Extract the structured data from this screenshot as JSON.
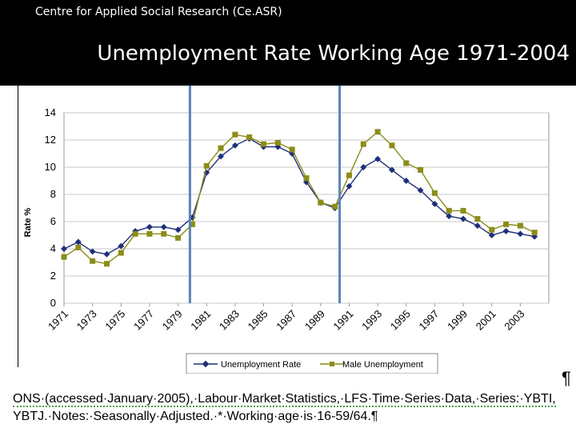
{
  "header": {
    "org": "Centre for Applied Social Research (Ce.ASR)",
    "title": "Unemployment Rate Working Age 1971-2004"
  },
  "chart_data": {
    "type": "line",
    "ylabel": "Rate %",
    "ylim": [
      0,
      14
    ],
    "yticks": [
      "0",
      "2",
      "4",
      "6",
      "8",
      "10",
      "12",
      "14"
    ],
    "xticks": [
      "1971",
      "1973",
      "1975",
      "1977",
      "1979",
      "1981",
      "1983",
      "1985",
      "1987",
      "1989",
      "1991",
      "1993",
      "1995",
      "1997",
      "1999",
      "2001",
      "2003"
    ],
    "x": [
      1971,
      1972,
      1973,
      1974,
      1975,
      1976,
      1977,
      1978,
      1979,
      1980,
      1981,
      1982,
      1983,
      1984,
      1985,
      1986,
      1987,
      1988,
      1989,
      1990,
      1991,
      1992,
      1993,
      1994,
      1995,
      1996,
      1997,
      1998,
      1999,
      2000,
      2001,
      2002,
      2003,
      2004
    ],
    "grid": true,
    "vertical_markers": [
      1980,
      1990.5
    ],
    "legend_position": "bottom",
    "series": [
      {
        "name": "Unemployment Rate",
        "color": "#1f2f7a",
        "marker": "diamond",
        "values": [
          4.0,
          4.5,
          3.8,
          3.6,
          4.2,
          5.3,
          5.6,
          5.6,
          5.4,
          6.3,
          9.6,
          10.8,
          11.6,
          12.1,
          11.5,
          11.5,
          11.0,
          8.9,
          7.4,
          7.0,
          8.6,
          10.0,
          10.6,
          9.8,
          9.0,
          8.3,
          7.3,
          6.4,
          6.2,
          5.7,
          5.0,
          5.3,
          5.1,
          4.9
        ]
      },
      {
        "name": "Male Unemployment",
        "color": "#8c8c1a",
        "marker": "square",
        "values": [
          3.4,
          4.1,
          3.1,
          2.9,
          3.7,
          5.1,
          5.1,
          5.1,
          4.8,
          5.8,
          10.1,
          11.4,
          12.4,
          12.2,
          11.7,
          11.8,
          11.3,
          9.2,
          7.4,
          7.1,
          9.4,
          11.7,
          12.6,
          11.6,
          10.3,
          9.8,
          8.1,
          6.8,
          6.8,
          6.2,
          5.4,
          5.8,
          5.7,
          5.2
        ]
      }
    ]
  },
  "source_note": {
    "pilcrow": "¶",
    "line1": "ONS·(accessed·January·2005),·Labour·Market·Statistics,·LFS·Time·Series·Data,·Series:·YBTI,",
    "line2": "YBTJ.·Notes:·Seasonally·Adjusted.·*·Working·age·is·16-59/64.¶"
  }
}
